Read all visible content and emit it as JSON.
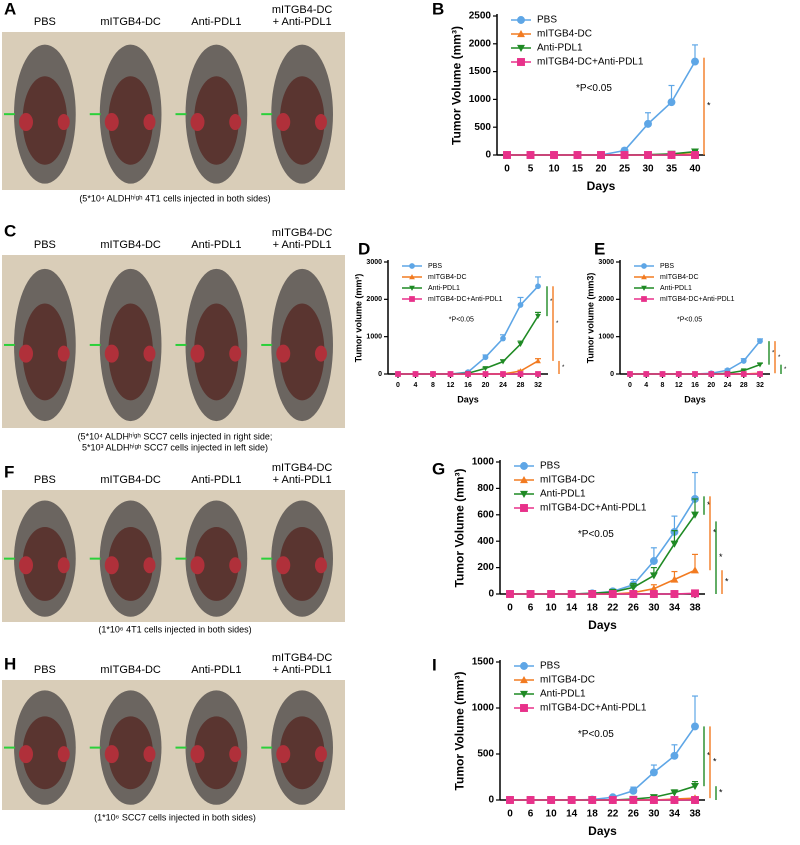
{
  "figures": [
    {
      "panel": "A",
      "columns": [
        [
          "PBS"
        ],
        [
          "mITGB4-DC"
        ],
        [
          "Anti-PDL1"
        ],
        [
          "mITGB4-DC",
          "+ Anti-PDL1"
        ]
      ],
      "caption": [
        "(5*10⁴ ALDHʰⁱᵍʰ 4T1 cells injected in both sides)"
      ]
    },
    {
      "panel": "C",
      "columns": [
        [
          "PBS"
        ],
        [
          "mITGB4-DC"
        ],
        [
          "Anti-PDL1"
        ],
        [
          "mITGB4-DC",
          "+ Anti-PDL1"
        ]
      ],
      "caption": [
        "(5*10⁴ ALDHʰⁱᵍʰ SCC7 cells injected in right side;",
        "5*10³ ALDHʰⁱᵍʰ SCC7 cells injected in left side)"
      ]
    },
    {
      "panel": "F",
      "columns": [
        [
          "PBS"
        ],
        [
          "mITGB4-DC"
        ],
        [
          "Anti-PDL1"
        ],
        [
          "mITGB4-DC",
          "+ Anti-PDL1"
        ]
      ],
      "caption": [
        "(1*10⁶ 4T1 cells injected in both sides)"
      ]
    },
    {
      "panel": "H",
      "columns": [
        [
          "PBS"
        ],
        [
          "mITGB4-DC"
        ],
        [
          "Anti-PDL1"
        ],
        [
          "mITGB4-DC",
          "+ Anti-PDL1"
        ]
      ],
      "caption": [
        "(1*10⁶ SCC7 cells injected in both sides)"
      ]
    }
  ],
  "chart_data": [
    {
      "type": "line",
      "panel": "B",
      "x_label": "Days",
      "y_label": "Tumor Volume (mm³)",
      "annotation": "*P<0.05",
      "categories": [
        "0",
        "5",
        "10",
        "15",
        "20",
        "25",
        "30",
        "35",
        "40"
      ],
      "ylim": [
        0,
        2500
      ],
      "yticks": [
        0,
        500,
        1000,
        1500,
        2000,
        2500
      ],
      "series": [
        {
          "name": "PBS",
          "color": "#5ea6e6",
          "marker": "circle",
          "values": [
            0,
            0,
            0,
            0,
            0,
            80,
            560,
            950,
            1680
          ],
          "errors": [
            0,
            0,
            0,
            0,
            0,
            40,
            200,
            300,
            300
          ]
        },
        {
          "name": "mITGB4-DC",
          "color": "#f27b21",
          "marker": "triangle-up",
          "values": [
            0,
            0,
            0,
            0,
            0,
            0,
            0,
            5,
            20
          ],
          "errors": [
            0,
            0,
            0,
            0,
            0,
            0,
            0,
            5,
            10
          ]
        },
        {
          "name": "Anti-PDL1",
          "color": "#1f8a24",
          "marker": "triangle-down",
          "values": [
            0,
            0,
            0,
            0,
            0,
            0,
            5,
            20,
            60
          ],
          "errors": [
            0,
            0,
            0,
            0,
            0,
            0,
            5,
            10,
            20
          ]
        },
        {
          "name": "mITGB4-DC+Anti-PDL1",
          "color": "#e8318a",
          "marker": "square",
          "values": [
            0,
            0,
            0,
            0,
            0,
            0,
            0,
            0,
            0
          ],
          "errors": [
            0,
            0,
            0,
            0,
            0,
            0,
            0,
            0,
            0
          ]
        }
      ],
      "brackets": [
        {
          "color": "#f27b21",
          "from": 1750,
          "to": 0,
          "label": "*"
        }
      ]
    },
    {
      "type": "line",
      "panel": "D",
      "x_label": "Days",
      "y_label": "Tumor volume (mm³)",
      "annotation": "*P<0.05",
      "categories": [
        "0",
        "4",
        "8",
        "12",
        "16",
        "20",
        "24",
        "28",
        "32"
      ],
      "ylim": [
        0,
        3000
      ],
      "yticks": [
        0,
        1000,
        2000,
        3000
      ],
      "series": [
        {
          "name": "PBS",
          "color": "#5ea6e6",
          "marker": "circle",
          "values": [
            0,
            0,
            0,
            0,
            50,
            450,
            950,
            1850,
            2350
          ],
          "errors": [
            0,
            0,
            0,
            0,
            20,
            60,
            100,
            200,
            250
          ]
        },
        {
          "name": "mITGB4-DC",
          "color": "#f27b21",
          "marker": "triangle-up",
          "values": [
            0,
            0,
            0,
            0,
            0,
            0,
            0,
            80,
            350
          ],
          "errors": [
            0,
            0,
            0,
            0,
            0,
            0,
            0,
            20,
            60
          ]
        },
        {
          "name": "Anti-PDL1",
          "color": "#1f8a24",
          "marker": "triangle-down",
          "values": [
            0,
            0,
            0,
            0,
            20,
            150,
            330,
            800,
            1550
          ],
          "errors": [
            0,
            0,
            0,
            0,
            10,
            30,
            50,
            80,
            100
          ]
        },
        {
          "name": "mITGB4-DC+Anti-PDL1",
          "color": "#e8318a",
          "marker": "square",
          "values": [
            0,
            0,
            0,
            0,
            0,
            0,
            0,
            0,
            0
          ],
          "errors": [
            0,
            0,
            0,
            0,
            0,
            0,
            0,
            0,
            0
          ]
        }
      ],
      "brackets": [
        {
          "color": "#1f8a24",
          "from": 2350,
          "to": 1550,
          "label": "*"
        },
        {
          "color": "#f27b21",
          "from": 2350,
          "to": 350,
          "label": "*"
        },
        {
          "color": "#f27b21",
          "from": 350,
          "to": 0,
          "label": "*"
        }
      ]
    },
    {
      "type": "line",
      "panel": "E",
      "x_label": "Days",
      "y_label": "Tumor volume (mm3)",
      "annotation": "*P<0.05",
      "categories": [
        "0",
        "4",
        "8",
        "12",
        "16",
        "20",
        "24",
        "28",
        "32"
      ],
      "ylim": [
        0,
        3000
      ],
      "yticks": [
        0,
        1000,
        2000,
        3000
      ],
      "series": [
        {
          "name": "PBS",
          "color": "#5ea6e6",
          "marker": "circle",
          "values": [
            0,
            0,
            0,
            0,
            0,
            20,
            100,
            350,
            880
          ],
          "errors": [
            0,
            0,
            0,
            0,
            0,
            10,
            30,
            60,
            60
          ]
        },
        {
          "name": "mITGB4-DC",
          "color": "#f27b21",
          "marker": "triangle-up",
          "values": [
            0,
            0,
            0,
            0,
            0,
            0,
            0,
            0,
            20
          ],
          "errors": [
            0,
            0,
            0,
            0,
            0,
            0,
            0,
            0,
            10
          ]
        },
        {
          "name": "Anti-PDL1",
          "color": "#1f8a24",
          "marker": "triangle-down",
          "values": [
            0,
            0,
            0,
            0,
            0,
            0,
            20,
            90,
            250
          ],
          "errors": [
            0,
            0,
            0,
            0,
            0,
            0,
            10,
            20,
            40
          ]
        },
        {
          "name": "mITGB4-DC+Anti-PDL1",
          "color": "#e8318a",
          "marker": "square",
          "values": [
            0,
            0,
            0,
            0,
            0,
            0,
            0,
            0,
            0
          ],
          "errors": [
            0,
            0,
            0,
            0,
            0,
            0,
            0,
            0,
            0
          ]
        }
      ],
      "brackets": [
        {
          "color": "#1f8a24",
          "from": 880,
          "to": 250,
          "label": "*"
        },
        {
          "color": "#f27b21",
          "from": 880,
          "to": 20,
          "label": "*"
        },
        {
          "color": "#1f8a24",
          "from": 250,
          "to": 0,
          "label": "*"
        }
      ]
    },
    {
      "type": "line",
      "panel": "G",
      "x_label": "Days",
      "y_label": "Tumor Volume (mm³)",
      "annotation": "*P<0.05",
      "categories": [
        "0",
        "6",
        "10",
        "14",
        "18",
        "22",
        "26",
        "30",
        "34",
        "38"
      ],
      "ylim": [
        0,
        1000
      ],
      "yticks": [
        0,
        200,
        400,
        600,
        800,
        1000
      ],
      "series": [
        {
          "name": "PBS",
          "color": "#5ea6e6",
          "marker": "circle",
          "values": [
            0,
            0,
            0,
            0,
            5,
            20,
            70,
            250,
            470,
            720
          ],
          "errors": [
            0,
            0,
            0,
            0,
            5,
            10,
            40,
            100,
            120,
            200
          ]
        },
        {
          "name": "mITGB4-DC",
          "color": "#f27b21",
          "marker": "triangle-up",
          "values": [
            0,
            0,
            0,
            0,
            0,
            0,
            10,
            40,
            110,
            180
          ],
          "errors": [
            0,
            0,
            0,
            0,
            0,
            0,
            10,
            30,
            60,
            120
          ]
        },
        {
          "name": "Anti-PDL1",
          "color": "#1f8a24",
          "marker": "triangle-down",
          "values": [
            0,
            0,
            0,
            0,
            5,
            15,
            50,
            140,
            380,
            600
          ],
          "errors": [
            0,
            0,
            0,
            0,
            5,
            10,
            30,
            60,
            100,
            120
          ]
        },
        {
          "name": "mITGB4-DC+Anti-PDL1",
          "color": "#e8318a",
          "marker": "square",
          "values": [
            0,
            0,
            0,
            0,
            0,
            0,
            0,
            0,
            0,
            5
          ],
          "errors": [
            0,
            0,
            0,
            0,
            0,
            0,
            0,
            0,
            0,
            5
          ]
        }
      ],
      "brackets": [
        {
          "color": "#1f8a24",
          "from": 740,
          "to": 600,
          "label": "*"
        },
        {
          "color": "#f27b21",
          "from": 740,
          "to": 180,
          "label": "*"
        },
        {
          "color": "#1f8a24",
          "from": 550,
          "to": 0,
          "label": "*"
        },
        {
          "color": "#f27b21",
          "from": 180,
          "to": 0,
          "label": "*"
        }
      ]
    },
    {
      "type": "line",
      "panel": "I",
      "x_label": "Days",
      "y_label": "Tumor Volume (mm³)",
      "annotation": "*P<0.05",
      "categories": [
        "0",
        "6",
        "10",
        "14",
        "18",
        "22",
        "26",
        "30",
        "34",
        "38"
      ],
      "ylim": [
        0,
        1500
      ],
      "yticks": [
        0,
        500,
        1000,
        1500
      ],
      "series": [
        {
          "name": "PBS",
          "color": "#5ea6e6",
          "marker": "circle",
          "values": [
            0,
            0,
            0,
            0,
            5,
            30,
            100,
            300,
            480,
            800
          ],
          "errors": [
            0,
            0,
            0,
            0,
            5,
            10,
            40,
            80,
            120,
            330
          ]
        },
        {
          "name": "mITGB4-DC",
          "color": "#f27b21",
          "marker": "triangle-up",
          "values": [
            0,
            0,
            0,
            0,
            0,
            0,
            0,
            0,
            10,
            20
          ],
          "errors": [
            0,
            0,
            0,
            0,
            0,
            0,
            0,
            0,
            5,
            10
          ]
        },
        {
          "name": "Anti-PDL1",
          "color": "#1f8a24",
          "marker": "triangle-down",
          "values": [
            0,
            0,
            0,
            0,
            0,
            0,
            10,
            30,
            80,
            150
          ],
          "errors": [
            0,
            0,
            0,
            0,
            0,
            0,
            5,
            10,
            30,
            50
          ]
        },
        {
          "name": "mITGB4-DC+Anti-PDL1",
          "color": "#e8318a",
          "marker": "square",
          "values": [
            0,
            0,
            0,
            0,
            0,
            0,
            0,
            0,
            0,
            0
          ],
          "errors": [
            0,
            0,
            0,
            0,
            0,
            0,
            0,
            0,
            0,
            0
          ]
        }
      ],
      "brackets": [
        {
          "color": "#1f8a24",
          "from": 800,
          "to": 150,
          "label": "*"
        },
        {
          "color": "#f27b21",
          "from": 800,
          "to": 20,
          "label": "*"
        },
        {
          "color": "#1f8a24",
          "from": 150,
          "to": 0,
          "label": "*"
        }
      ]
    }
  ]
}
